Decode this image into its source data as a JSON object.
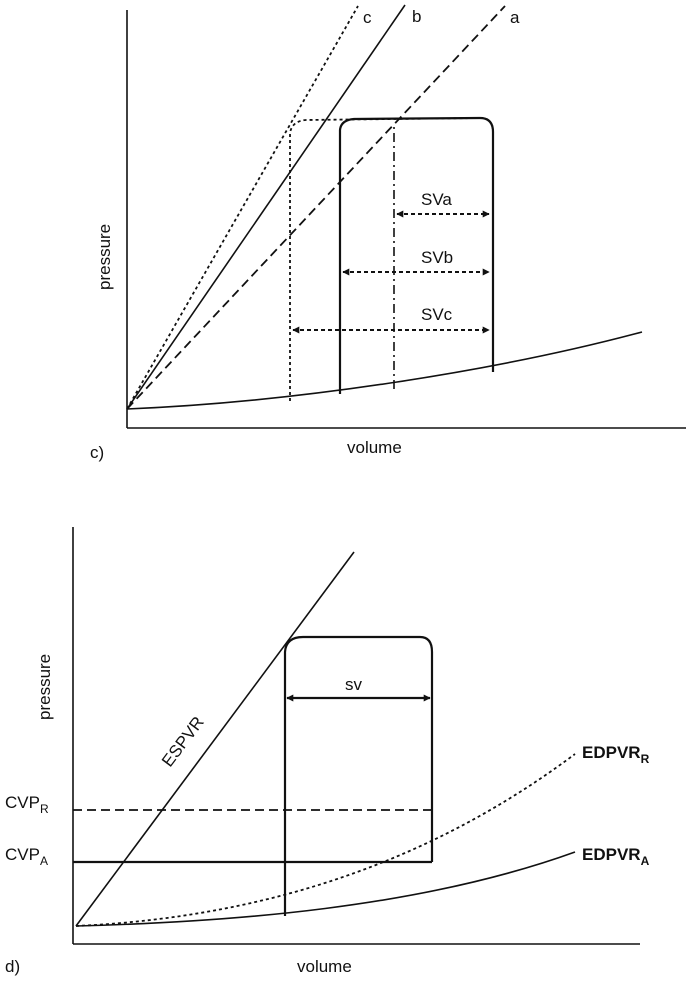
{
  "panel_c": {
    "panel_label": "c)",
    "xlabel": "volume",
    "ylabel": "pressure",
    "line_labels": {
      "a": "a",
      "b": "b",
      "c": "c"
    },
    "sv_labels": {
      "a": "SVa",
      "b": "SVb",
      "c": "SVc"
    }
  },
  "panel_d": {
    "panel_label": "d)",
    "xlabel": "volume",
    "ylabel": "pressure",
    "espvr_label": "ESPVR",
    "sv_label": "sv",
    "cvp_r": {
      "main": "CVP",
      "sub": "R"
    },
    "cvp_a": {
      "main": "CVP",
      "sub": "A"
    },
    "edpvr_r": {
      "main": "EDPVR",
      "sub": "R"
    },
    "edpvr_a": {
      "main": "EDPVR",
      "sub": "A"
    }
  }
}
